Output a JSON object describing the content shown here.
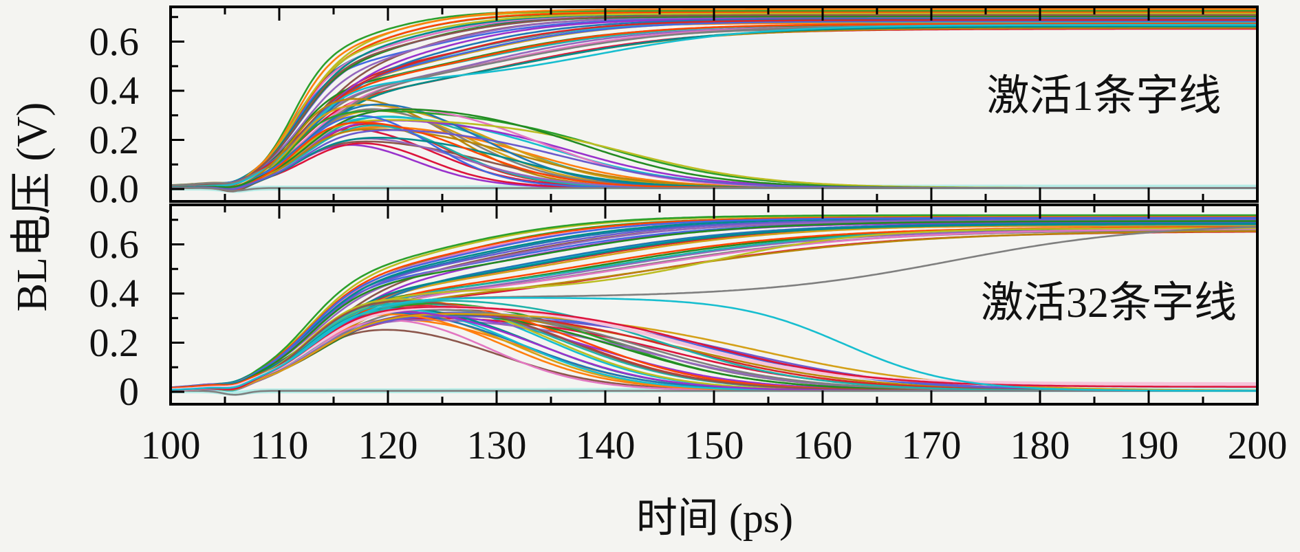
{
  "figure": {
    "background_color": "#f4f4f1",
    "frame_color": "#000000",
    "tick_color": "#000000",
    "text_color": "#111111"
  },
  "chart_data": {
    "type": "line",
    "title": "",
    "xlabel": "时间 (ps)",
    "ylabel": "BL电压 (V)",
    "xlim": [
      100,
      200
    ],
    "x_major_ticks": [
      100,
      110,
      120,
      130,
      140,
      150,
      160,
      170,
      180,
      190,
      200
    ],
    "x_minor_step": 5,
    "grid": false,
    "legend": "none",
    "trace_model": "v(t) = dip*exp(-((t-105.9)/1.55)^2) + 0.004 + a1*sigma((t-t1)/w1) + (vf-a1)*sigma((t-t2)/w2); trace = [colorIndex,t1,w1,a1,t2,w2,vf,strokeWidth?]; vf~0.65-0.73 = read-1 (charged) bitline, vf~0 = read-0 (discharged) bitline",
    "palette": [
      "#1f77b4",
      "#ff7f0e",
      "#2ca02c",
      "#d62728",
      "#9467bd",
      "#8c564b",
      "#e377c2",
      "#7f7f7f",
      "#bcbd22",
      "#17becf",
      "#4169e1",
      "#dc143c",
      "#008b8b",
      "#d4a017",
      "#228b22",
      "#9932cc",
      "#ff4500",
      "#20b2aa",
      "#6a5acd",
      "#b8860b",
      "#b5ece6",
      "#f6c3da"
    ],
    "panels": [
      {
        "id": "top",
        "annotation": "激活1条字线",
        "ylim": [
          -0.053,
          0.741
        ],
        "y_major_ticks": [
          0.0,
          0.2,
          0.4,
          0.6
        ],
        "y_tick_labels": [
          "0.0",
          "0.2",
          "0.4",
          "0.6"
        ],
        "y_minor_ticks": [
          0.1,
          0.3,
          0.5,
          0.7
        ],
        "traces": [
          [
            20,
            111,
            2,
            0,
            130,
            5,
            0.004,
            7
          ],
          [
            0,
            111.2,
            1.8,
            0.46,
            120,
            5,
            0.7
          ],
          [
            1,
            112.0,
            2.2,
            0.38,
            124,
            6,
            0.672
          ],
          [
            2,
            111.6,
            2.0,
            0.5,
            119,
            4.5,
            0.712
          ],
          [
            3,
            112.4,
            2.4,
            0.42,
            126,
            7,
            0.685
          ],
          [
            4,
            111.9,
            2.1,
            0.35,
            128,
            7.5,
            0.66
          ],
          [
            5,
            112.8,
            2.5,
            0.44,
            122,
            5.5,
            0.695
          ],
          [
            6,
            111.4,
            1.9,
            0.48,
            121,
            5,
            0.706
          ],
          [
            7,
            112.2,
            2.3,
            0.36,
            129,
            8,
            0.655
          ],
          [
            8,
            111.7,
            2.0,
            0.52,
            118.5,
            4,
            0.718
          ],
          [
            9,
            112.6,
            2.4,
            0.4,
            125,
            6.5,
            0.678
          ],
          [
            10,
            111.3,
            1.8,
            0.45,
            123,
            6,
            0.692
          ],
          [
            11,
            112.1,
            2.2,
            0.33,
            130,
            8.5,
            0.648
          ],
          [
            12,
            111.8,
            2.1,
            0.49,
            120.5,
            5,
            0.708
          ],
          [
            13,
            112.5,
            2.4,
            0.41,
            127,
            7,
            0.682
          ],
          [
            14,
            111.5,
            1.9,
            0.37,
            126.5,
            7.5,
            0.665
          ],
          [
            15,
            112.9,
            2.6,
            0.43,
            123.5,
            6,
            0.69
          ],
          [
            16,
            111.6,
            2.0,
            0.51,
            119.5,
            4.5,
            0.715
          ],
          [
            17,
            112.3,
            2.3,
            0.39,
            128.5,
            8,
            0.67
          ],
          [
            18,
            111.9,
            2.1,
            0.47,
            121.5,
            5.5,
            0.702
          ],
          [
            19,
            112.7,
            2.5,
            0.34,
            131,
            9,
            0.652
          ],
          [
            0,
            113.1,
            2.7,
            0.42,
            124.5,
            6.5,
            0.688
          ],
          [
            2,
            111.2,
            1.7,
            0.53,
            118,
            4,
            0.722
          ],
          [
            4,
            112.0,
            2.2,
            0.44,
            122.5,
            5.5,
            0.696
          ],
          [
            6,
            112.8,
            2.5,
            0.36,
            129.5,
            8,
            0.662
          ],
          [
            8,
            111.5,
            1.9,
            0.5,
            120,
            5,
            0.71
          ],
          [
            10,
            112.4,
            2.3,
            0.4,
            126,
            7,
            0.68
          ],
          [
            12,
            113.0,
            2.6,
            0.35,
            132,
            9,
            0.658
          ],
          [
            14,
            111.7,
            2.0,
            0.46,
            121,
            5,
            0.698
          ],
          [
            16,
            112.2,
            2.2,
            0.38,
            127.5,
            7.5,
            0.668
          ],
          [
            1,
            111.4,
            1.8,
            0.52,
            119,
            4.5,
            0.728
          ],
          [
            3,
            112.6,
            2.4,
            0.41,
            125.5,
            6.5,
            0.684
          ],
          [
            5,
            111.8,
            2.0,
            0.48,
            122,
            5.5,
            0.704
          ],
          [
            7,
            113.2,
            2.7,
            0.37,
            130.5,
            8.5,
            0.664
          ],
          [
            9,
            112.1,
            2.2,
            0.42,
            139,
            7.5,
            0.664
          ],
          [
            11,
            111.5,
            1.9,
            0.3,
            124,
            4.0,
            0
          ],
          [
            13,
            112.3,
            2.3,
            0.38,
            128,
            4.5,
            0
          ],
          [
            15,
            111.8,
            2.1,
            0.24,
            122,
            3.5,
            0
          ],
          [
            17,
            112.6,
            2.4,
            0.34,
            131,
            5,
            0
          ],
          [
            19,
            111.3,
            1.8,
            0.42,
            126,
            4,
            0
          ],
          [
            1,
            112.0,
            2.2,
            0.28,
            133,
            5.5,
            0
          ],
          [
            3,
            112.8,
            2.5,
            0.36,
            124.5,
            4,
            0
          ],
          [
            5,
            111.6,
            2.0,
            0.22,
            129,
            5,
            0
          ],
          [
            7,
            112.4,
            2.3,
            0.4,
            127,
            4.5,
            0
          ],
          [
            9,
            111.9,
            2.1,
            0.32,
            135,
            6,
            0
          ],
          [
            11,
            112.7,
            2.5,
            0.26,
            123,
            3.5,
            0
          ],
          [
            13,
            111.4,
            1.8,
            0.38,
            130,
            5,
            0
          ],
          [
            15,
            112.2,
            2.2,
            0.3,
            137,
            6,
            0
          ],
          [
            17,
            113.0,
            2.6,
            0.35,
            125,
            4,
            0
          ],
          [
            19,
            111.7,
            2.0,
            0.27,
            132,
            5.5,
            0
          ],
          [
            0,
            112.5,
            2.4,
            0.41,
            128.5,
            4.5,
            0
          ],
          [
            2,
            111.2,
            1.7,
            0.33,
            140,
            6.5,
            0
          ],
          [
            4,
            112.1,
            2.2,
            0.25,
            126.5,
            4.5,
            0
          ],
          [
            6,
            112.9,
            2.6,
            0.37,
            134,
            5.5,
            0
          ],
          [
            8,
            111.6,
            1.9,
            0.29,
            142,
            6.5,
            0
          ],
          [
            10,
            112.3,
            2.3,
            0.39,
            123.5,
            3.5,
            0
          ],
          [
            12,
            111.9,
            2.1,
            0.23,
            131.5,
            5,
            0
          ],
          [
            14,
            112.6,
            2.4,
            0.35,
            138,
            6,
            0
          ],
          [
            16,
            111.5,
            1.9,
            0.31,
            127.5,
            4.5,
            0
          ],
          [
            18,
            112.2,
            2.2,
            0.26,
            136,
            6,
            0
          ],
          [
            7,
            111.0,
            1.6,
            0,
            125,
            4,
            0
          ]
        ]
      },
      {
        "id": "bottom",
        "annotation": "激活32条字线",
        "ylim": [
          -0.05,
          0.772
        ],
        "y_major_ticks": [
          0.0,
          0.2,
          0.4,
          0.6
        ],
        "y_tick_labels": [
          "0",
          "0.2",
          "0.4",
          "0.6"
        ],
        "y_minor_ticks": [
          0.1,
          0.3,
          0.5,
          0.7
        ],
        "traces": [
          [
            20,
            112,
            2.5,
            0,
            140,
            6,
            0.004,
            7
          ],
          [
            0,
            112.5,
            2.6,
            0.4,
            128,
            8,
            0.695
          ],
          [
            1,
            113.3,
            3.0,
            0.36,
            133,
            9,
            0.672
          ],
          [
            2,
            112.8,
            2.8,
            0.42,
            126,
            7,
            0.705
          ],
          [
            3,
            113.6,
            3.2,
            0.38,
            136,
            10,
            0.68
          ],
          [
            4,
            112.6,
            2.7,
            0.34,
            140,
            11,
            0.66
          ],
          [
            5,
            114.0,
            3.3,
            0.41,
            130,
            8.5,
            0.69
          ],
          [
            6,
            112.9,
            2.8,
            0.43,
            127,
            7.5,
            0.7
          ],
          [
            7,
            113.4,
            3.1,
            0.35,
            142,
            11,
            0.655
          ],
          [
            8,
            112.7,
            2.7,
            0.44,
            125,
            7,
            0.712
          ],
          [
            9,
            113.8,
            3.2,
            0.37,
            134,
            9.5,
            0.676
          ],
          [
            10,
            112.5,
            2.6,
            0.4,
            131,
            9,
            0.688
          ],
          [
            11,
            113.2,
            3.0,
            0.33,
            144,
            11.5,
            0.65
          ],
          [
            12,
            112.8,
            2.8,
            0.42,
            128.5,
            8,
            0.702
          ],
          [
            13,
            113.7,
            3.2,
            0.38,
            137,
            10,
            0.678
          ],
          [
            14,
            112.6,
            2.7,
            0.35,
            139,
            10.5,
            0.664
          ],
          [
            15,
            114.1,
            3.4,
            0.4,
            132,
            9,
            0.686
          ],
          [
            16,
            112.7,
            2.7,
            0.43,
            126.5,
            7.5,
            0.707
          ],
          [
            17,
            113.5,
            3.1,
            0.36,
            141,
            11,
            0.668
          ],
          [
            18,
            112.9,
            2.8,
            0.41,
            129.5,
            8.5,
            0.697
          ],
          [
            19,
            113.9,
            3.3,
            0.34,
            145,
            12,
            0.653
          ],
          [
            0,
            114.3,
            3.5,
            0.39,
            135,
            9.5,
            0.683
          ],
          [
            2,
            112.4,
            2.5,
            0.44,
            124.5,
            7,
            0.715
          ],
          [
            4,
            113.1,
            2.9,
            0.4,
            130.5,
            8.5,
            0.693
          ],
          [
            6,
            113.8,
            3.2,
            0.35,
            143,
            11.5,
            0.661
          ],
          [
            10,
            112.6,
            2.6,
            0.42,
            127.5,
            7.5,
            0.704
          ],
          [
            12,
            113.3,
            3.0,
            0.38,
            135.5,
            9.5,
            0.679
          ],
          [
            14,
            112.8,
            2.7,
            0.41,
            133.5,
            9,
            0.691
          ],
          [
            16,
            113.6,
            3.1,
            0.36,
            138.5,
            10.5,
            0.667
          ],
          [
            8,
            113.0,
            2.9,
            0.4,
            150,
            7,
            0.662
          ],
          [
            7,
            113.2,
            3.0,
            0.38,
            172,
            9,
            0.68
          ],
          [
            1,
            112.7,
            2.7,
            0.34,
            133,
            5.5,
            0
          ],
          [
            3,
            113.4,
            3.1,
            0.4,
            137,
            6,
            0
          ],
          [
            5,
            112.5,
            2.6,
            0.3,
            130,
            5,
            0
          ],
          [
            7,
            113.8,
            3.2,
            0.37,
            142,
            7,
            0
          ],
          [
            9,
            112.8,
            2.8,
            0.42,
            134.5,
            5.5,
            0
          ],
          [
            11,
            113.2,
            3.0,
            0.32,
            146,
            7.5,
            0
          ],
          [
            13,
            112.6,
            2.6,
            0.38,
            131.5,
            5,
            0
          ],
          [
            15,
            113.6,
            3.1,
            0.35,
            139,
            6.5,
            0
          ],
          [
            17,
            112.9,
            2.8,
            0.41,
            136,
            6,
            0
          ],
          [
            19,
            113.3,
            3.0,
            0.33,
            148,
            8,
            0
          ],
          [
            0,
            112.5,
            2.5,
            0.37,
            132.5,
            5.5,
            0
          ],
          [
            2,
            113.7,
            3.2,
            0.4,
            140.5,
            6.5,
            0
          ],
          [
            4,
            112.8,
            2.7,
            0.31,
            144,
            7,
            0
          ],
          [
            6,
            113.1,
            2.9,
            0.36,
            129,
            4.5,
            0
          ],
          [
            8,
            112.6,
            2.6,
            0.42,
            135,
            5.5,
            0
          ],
          [
            10,
            113.5,
            3.1,
            0.34,
            150,
            8,
            0
          ],
          [
            12,
            112.7,
            2.7,
            0.39,
            133.5,
            5.5,
            0
          ],
          [
            14,
            113.9,
            3.3,
            0.35,
            141.5,
            6.5,
            0
          ],
          [
            16,
            112.5,
            2.5,
            0.4,
            138,
            6,
            0
          ],
          [
            18,
            113.2,
            3.0,
            0.32,
            152,
            8,
            0
          ],
          [
            1,
            112.9,
            2.8,
            0.38,
            130.5,
            5,
            0
          ],
          [
            3,
            113.6,
            3.1,
            0.34,
            147,
            7.5,
            0
          ],
          [
            5,
            112.6,
            2.6,
            0.41,
            136.5,
            6,
            0
          ],
          [
            7,
            113.0,
            2.9,
            0.36,
            143.5,
            7,
            0
          ],
          [
            9,
            112.8,
            2.7,
            0.39,
            132,
            5,
            0
          ],
          [
            13,
            113.4,
            3.0,
            0.33,
            154,
            8.5,
            0
          ],
          [
            15,
            112.7,
            2.7,
            0.37,
            134,
            5.5,
            0
          ],
          [
            17,
            113.8,
            3.2,
            0.4,
            145,
            7,
            0
          ],
          [
            7,
            112.0,
            2.5,
            0,
            130,
            5,
            0
          ],
          [
            21,
            113,
            3,
            0.36,
            147,
            7,
            0.028,
            5
          ],
          [
            11,
            112.8,
            2.8,
            0.36,
            149,
            7.5,
            0.016
          ],
          [
            9,
            113.1,
            2.9,
            0.38,
            162,
            5,
            0
          ]
        ]
      }
    ]
  }
}
